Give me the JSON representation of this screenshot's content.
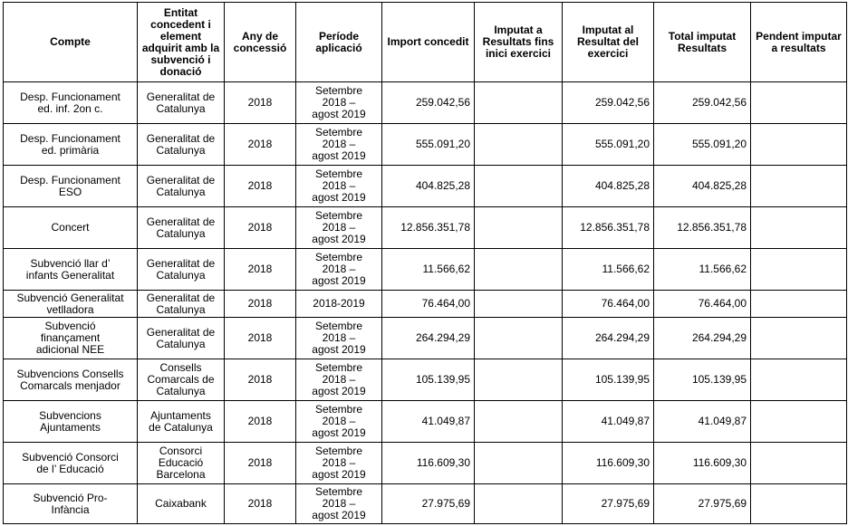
{
  "headers": [
    "Compte",
    "Entitat concedent i element adquirit amb la subvenció i donació",
    "Any de concessió",
    "Període aplicació",
    "Import concedit",
    "Imputat a Resultats fins inici exercici",
    "Imputat al Resultat del exercici",
    "Total imputat Resultats",
    "Pendent imputar a resultats"
  ],
  "rows": [
    {
      "compte": "Desp. Funcionament\ned. inf. 2on c.",
      "entitat": "Generalitat de\nCatalunya",
      "any": "2018",
      "periode": "Setembre\n2018 –\nagost 2019",
      "import": "259.042,56",
      "imputat_inici": "",
      "imputat_exercici": "259.042,56",
      "total": "259.042,56",
      "pendent": ""
    },
    {
      "compte": "Desp. Funcionament\ned. primària",
      "entitat": "Generalitat de\nCatalunya",
      "any": "2018",
      "periode": "Setembre\n2018 –\nagost 2019",
      "import": "555.091,20",
      "imputat_inici": "",
      "imputat_exercici": "555.091,20",
      "total": "555.091,20",
      "pendent": ""
    },
    {
      "compte": "Desp. Funcionament\nESO",
      "entitat": "Generalitat de\nCatalunya",
      "any": "2018",
      "periode": "Setembre\n2018 –\nagost 2019",
      "import": "404.825,28",
      "imputat_inici": "",
      "imputat_exercici": "404.825,28",
      "total": "404.825,28",
      "pendent": ""
    },
    {
      "compte": "Concert",
      "entitat": "Generalitat de\nCatalunya",
      "any": "2018",
      "periode": "Setembre\n2018 –\nagost 2019",
      "import": "12.856.351,78",
      "imputat_inici": "",
      "imputat_exercici": "12.856.351,78",
      "total": "12.856.351,78",
      "pendent": ""
    },
    {
      "compte": "Subvenció llar d’\ninfants Generalitat",
      "entitat": "Generalitat de\nCatalunya",
      "any": "2018",
      "periode": "Setembre\n2018 –\nagost 2019",
      "import": "11.566,62",
      "imputat_inici": "",
      "imputat_exercici": "11.566,62",
      "total": "11.566,62",
      "pendent": ""
    },
    {
      "compte": "Subvenció Generalitat\nvetlladora",
      "entitat": "Generalitat de\nCatalunya",
      "any": "2018",
      "periode": "2018-2019",
      "import": "76.464,00",
      "imputat_inici": "",
      "imputat_exercici": "76.464,00",
      "total": "76.464,00",
      "pendent": ""
    },
    {
      "compte": "Subvenció\nfinançament\nadicional NEE",
      "entitat": "Generalitat de\nCatalunya",
      "any": "2018",
      "periode": "Setembre\n2018 –\nagost 2019",
      "import": "264.294,29",
      "imputat_inici": "",
      "imputat_exercici": "264.294,29",
      "total": "264.294,29",
      "pendent": ""
    },
    {
      "compte": "Subvencions Consells\nComarcals menjador",
      "entitat": "Consells\nComarcals de\nCatalunya",
      "any": "2018",
      "periode": "Setembre\n2018 –\nagost 2019",
      "import": "105.139,95",
      "imputat_inici": "",
      "imputat_exercici": "105.139,95",
      "total": "105.139,95",
      "pendent": ""
    },
    {
      "compte": "Subvencions\nAjuntaments",
      "entitat": "Ajuntaments\nde Catalunya",
      "any": "2018",
      "periode": "Setembre\n2018 –\nagost 2019",
      "import": "41.049,87",
      "imputat_inici": "",
      "imputat_exercici": "41.049,87",
      "total": "41.049,87",
      "pendent": ""
    },
    {
      "compte": "Subvenció Consorci\nde l’ Educació",
      "entitat": "Consorci\nEducació\nBarcelona",
      "any": "2018",
      "periode": "Setembre\n2018 –\nagost 2019",
      "import": "116.609,30",
      "imputat_inici": "",
      "imputat_exercici": "116.609,30",
      "total": "116.609,30",
      "pendent": ""
    },
    {
      "compte": "Subvenció Pro-\nInfància",
      "entitat": "Caixabank",
      "any": "2018",
      "periode": "Setembre\n2018 –\nagost 2019",
      "import": "27.975,69",
      "imputat_inici": "",
      "imputat_exercici": "27.975,69",
      "total": "27.975,69",
      "pendent": ""
    }
  ]
}
